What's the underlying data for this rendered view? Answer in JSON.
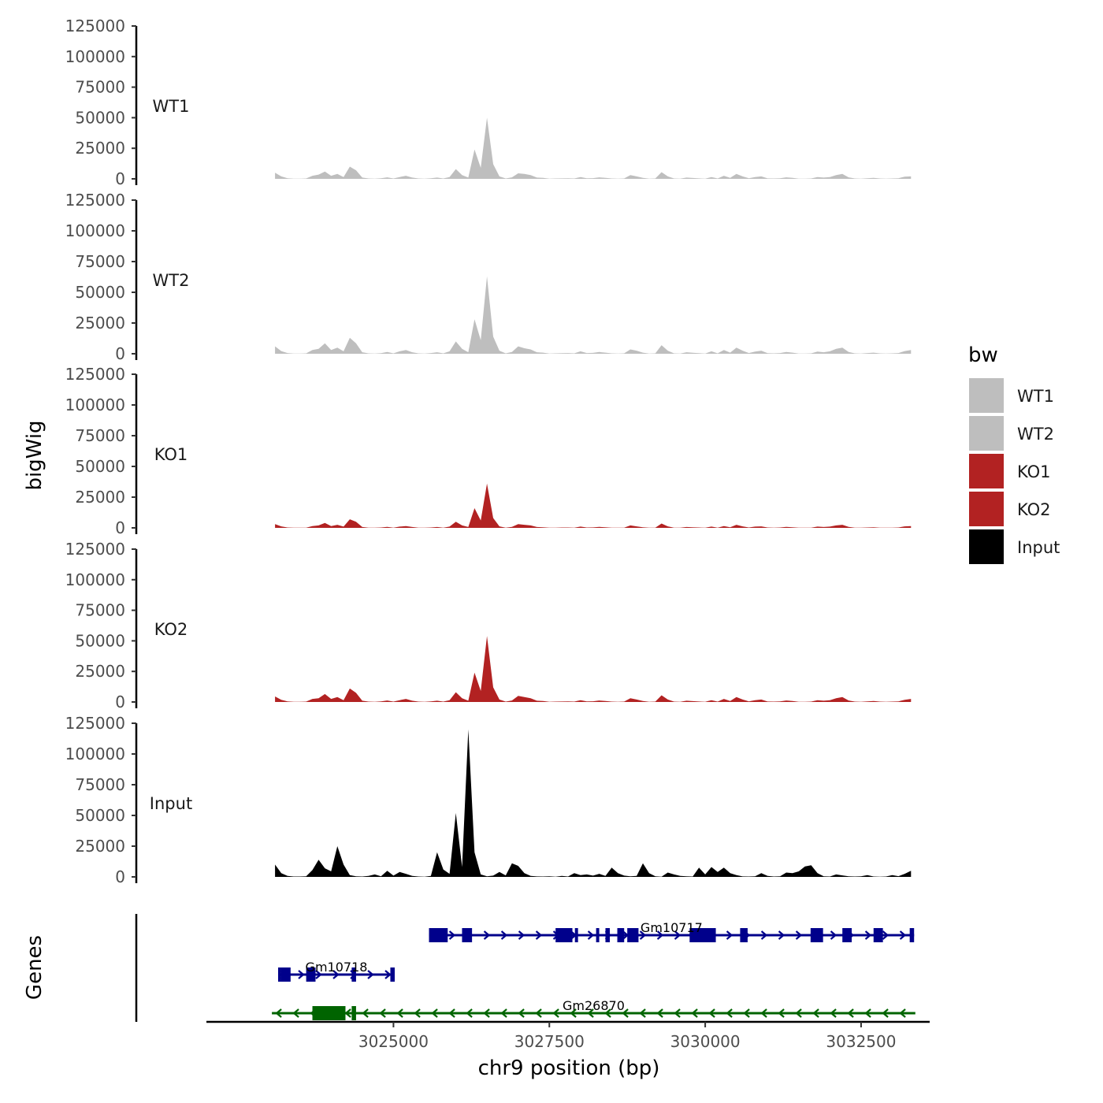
{
  "chart_data": {
    "type": "area",
    "title": "",
    "ylabel": "bigWig",
    "xlabel": "chr9 position (bp)",
    "genes_label": "Genes",
    "ylim": [
      0,
      125000
    ],
    "yticks": [
      0,
      25000,
      50000,
      75000,
      100000,
      125000
    ],
    "ytick_labels": [
      "0",
      "25000",
      "50000",
      "75000",
      "100000",
      "125000"
    ],
    "xlim": [
      3022000,
      3033600
    ],
    "xticks": [
      3025000,
      3027500,
      3030000,
      3032500
    ],
    "xtick_labels": [
      "3025000",
      "3027500",
      "3030000",
      "3032500"
    ],
    "x": [
      3023100,
      3023200,
      3023300,
      3023400,
      3023500,
      3023600,
      3023700,
      3023800,
      3023900,
      3024000,
      3024100,
      3024200,
      3024300,
      3024400,
      3024500,
      3024600,
      3024700,
      3024800,
      3024900,
      3025000,
      3025100,
      3025200,
      3025300,
      3025400,
      3025500,
      3025600,
      3025700,
      3025800,
      3025900,
      3026000,
      3026100,
      3026200,
      3026300,
      3026400,
      3026500,
      3026600,
      3026700,
      3026800,
      3026900,
      3027000,
      3027100,
      3027200,
      3027300,
      3027400,
      3027500,
      3027600,
      3027700,
      3027800,
      3027900,
      3028000,
      3028100,
      3028200,
      3028300,
      3028400,
      3028500,
      3028600,
      3028700,
      3028800,
      3028900,
      3029000,
      3029100,
      3029200,
      3029300,
      3029400,
      3029500,
      3029600,
      3029700,
      3029800,
      3029900,
      3030000,
      3030100,
      3030200,
      3030300,
      3030400,
      3030500,
      3030600,
      3030700,
      3030800,
      3030900,
      3031000,
      3031100,
      3031200,
      3031300,
      3031400,
      3031500,
      3031600,
      3031700,
      3031800,
      3031900,
      3032000,
      3032100,
      3032200,
      3032300,
      3032400,
      3032500,
      3032600,
      3032700,
      3032800,
      3032900,
      3033000,
      3033100,
      3033200,
      3033300
    ],
    "series": [
      {
        "name": "WT1",
        "color": "#bebebe",
        "values": [
          5000,
          2000,
          500,
          200,
          200,
          300,
          2500,
          3500,
          6000,
          2500,
          4000,
          1500,
          10000,
          7000,
          1000,
          300,
          200,
          500,
          1200,
          300,
          1500,
          2500,
          1000,
          300,
          200,
          500,
          1000,
          300,
          1500,
          8000,
          3000,
          1000,
          24000,
          9000,
          50000,
          12000,
          2000,
          300,
          1200,
          4500,
          4000,
          3000,
          1000,
          800,
          200,
          300,
          400,
          500,
          300,
          1500,
          500,
          600,
          1200,
          800,
          300,
          200,
          300,
          3000,
          2000,
          800,
          200,
          300,
          5500,
          2000,
          300,
          200,
          1000,
          700,
          400,
          200,
          1500,
          300,
          2500,
          800,
          4000,
          2000,
          500,
          1500,
          2000,
          400,
          300,
          500,
          1200,
          800,
          200,
          200,
          300,
          1500,
          1000,
          1500,
          3000,
          4000,
          1200,
          300,
          200,
          500,
          800,
          300,
          200,
          300,
          500,
          1800,
          2000
        ]
      },
      {
        "name": "WT2",
        "color": "#bebebe",
        "values": [
          6000,
          2200,
          600,
          200,
          200,
          300,
          3000,
          4000,
          8500,
          3000,
          5000,
          2000,
          13000,
          8500,
          1200,
          300,
          200,
          500,
          1500,
          300,
          2000,
          3000,
          1200,
          300,
          200,
          600,
          1200,
          300,
          2000,
          10000,
          4000,
          1200,
          28000,
          11000,
          63000,
          14000,
          2500,
          300,
          1500,
          6000,
          4500,
          3500,
          1200,
          900,
          200,
          300,
          500,
          600,
          300,
          2000,
          600,
          700,
          1400,
          900,
          300,
          200,
          300,
          3500,
          2500,
          900,
          200,
          300,
          7000,
          2500,
          300,
          200,
          1200,
          800,
          500,
          200,
          2000,
          300,
          3000,
          900,
          5000,
          2500,
          600,
          1800,
          2500,
          500,
          300,
          600,
          1400,
          900,
          200,
          200,
          300,
          1800,
          1200,
          2000,
          4000,
          5000,
          1400,
          300,
          200,
          600,
          900,
          300,
          200,
          300,
          600,
          2200,
          3000
        ]
      },
      {
        "name": "KO1",
        "color": "#b22222",
        "values": [
          3000,
          1200,
          300,
          100,
          100,
          200,
          1500,
          2000,
          4000,
          1500,
          2500,
          1000,
          7000,
          5000,
          700,
          200,
          100,
          300,
          800,
          200,
          1000,
          1500,
          700,
          200,
          100,
          300,
          700,
          200,
          1000,
          5000,
          2000,
          700,
          16000,
          6000,
          36000,
          8000,
          1200,
          200,
          800,
          3000,
          2500,
          2000,
          700,
          500,
          100,
          200,
          300,
          300,
          200,
          1000,
          300,
          400,
          800,
          500,
          200,
          100,
          200,
          2000,
          1200,
          500,
          100,
          200,
          3500,
          1200,
          200,
          100,
          700,
          500,
          300,
          100,
          1000,
          200,
          1500,
          500,
          2500,
          1200,
          300,
          1000,
          1200,
          300,
          200,
          300,
          800,
          500,
          100,
          100,
          200,
          1000,
          700,
          1000,
          2000,
          2500,
          800,
          200,
          100,
          300,
          500,
          200,
          100,
          200,
          300,
          1200,
          1500
        ]
      },
      {
        "name": "KO2",
        "color": "#b22222",
        "values": [
          4500,
          1800,
          500,
          200,
          200,
          300,
          2500,
          3000,
          6500,
          2500,
          4000,
          1500,
          11000,
          7500,
          1000,
          300,
          200,
          500,
          1200,
          300,
          1500,
          2500,
          1000,
          300,
          200,
          500,
          1000,
          300,
          1500,
          8000,
          3000,
          1000,
          24000,
          9000,
          54000,
          12000,
          2000,
          300,
          1200,
          5000,
          4000,
          3000,
          1000,
          800,
          200,
          300,
          400,
          500,
          300,
          1500,
          500,
          600,
          1200,
          800,
          300,
          200,
          300,
          3000,
          2000,
          800,
          200,
          300,
          5500,
          2000,
          300,
          200,
          1000,
          700,
          400,
          200,
          1500,
          300,
          2500,
          800,
          4000,
          2000,
          500,
          1500,
          2000,
          400,
          300,
          500,
          1200,
          800,
          200,
          200,
          300,
          1500,
          1000,
          1500,
          3000,
          4000,
          1200,
          300,
          200,
          500,
          800,
          300,
          200,
          300,
          500,
          1800,
          2500
        ]
      },
      {
        "name": "Input",
        "color": "#000000",
        "values": [
          10000,
          3000,
          800,
          300,
          300,
          500,
          5500,
          14000,
          7000,
          4500,
          25000,
          10000,
          1500,
          500,
          300,
          800,
          2000,
          500,
          5000,
          1000,
          4000,
          2500,
          800,
          300,
          200,
          800,
          20000,
          6000,
          2500,
          52000,
          8000,
          120000,
          20000,
          2000,
          500,
          1000,
          4000,
          1200,
          11000,
          9000,
          3000,
          800,
          400,
          300,
          500,
          200,
          800,
          300,
          3000,
          1500,
          2000,
          1000,
          2500,
          800,
          7500,
          3000,
          1000,
          500,
          800,
          11000,
          3000,
          500,
          200,
          3500,
          2000,
          800,
          500,
          300,
          7500,
          2000,
          8000,
          4000,
          7500,
          3000,
          1500,
          400,
          300,
          500,
          3000,
          800,
          300,
          500,
          3500,
          3000,
          4500,
          8500,
          9500,
          3000,
          500,
          300,
          2000,
          1200,
          500,
          300,
          500,
          1500,
          300,
          200,
          300,
          1500,
          600,
          2500,
          5000
        ]
      }
    ],
    "genes": [
      {
        "name": "Gm10717",
        "strand": "+",
        "color": "#00008b",
        "start": 3025570,
        "end": 3033350,
        "exons": [
          [
            3025570,
            3025600
          ],
          [
            3025600,
            3025870
          ],
          [
            3026100,
            3026260
          ],
          [
            3027600,
            3027870
          ],
          [
            3027910,
            3027960
          ],
          [
            3028250,
            3028300
          ],
          [
            3028400,
            3028470
          ],
          [
            3028590,
            3028700
          ],
          [
            3028750,
            3028930
          ],
          [
            3029750,
            3030170
          ],
          [
            3030560,
            3030680
          ],
          [
            3031690,
            3031890
          ],
          [
            3032200,
            3032350
          ],
          [
            3032700,
            3032850
          ],
          [
            3033280,
            3033350
          ]
        ]
      },
      {
        "name": "Gm10718",
        "strand": "+",
        "color": "#00008b",
        "start": 3023150,
        "end": 3025020,
        "exons": [
          [
            3023150,
            3023200
          ],
          [
            3023200,
            3023350
          ],
          [
            3023600,
            3023750
          ],
          [
            3024330,
            3024400
          ],
          [
            3024950,
            3025020
          ]
        ]
      },
      {
        "name": "Gm26870",
        "strand": "-",
        "color": "#006400",
        "start": 3023050,
        "end": 3033370,
        "exons": [
          [
            3023700,
            3024230
          ],
          [
            3024330,
            3024400
          ]
        ]
      }
    ],
    "legend": {
      "title": "bw",
      "position": "right",
      "entries": [
        "WT1",
        "WT2",
        "KO1",
        "KO2",
        "Input"
      ]
    }
  }
}
